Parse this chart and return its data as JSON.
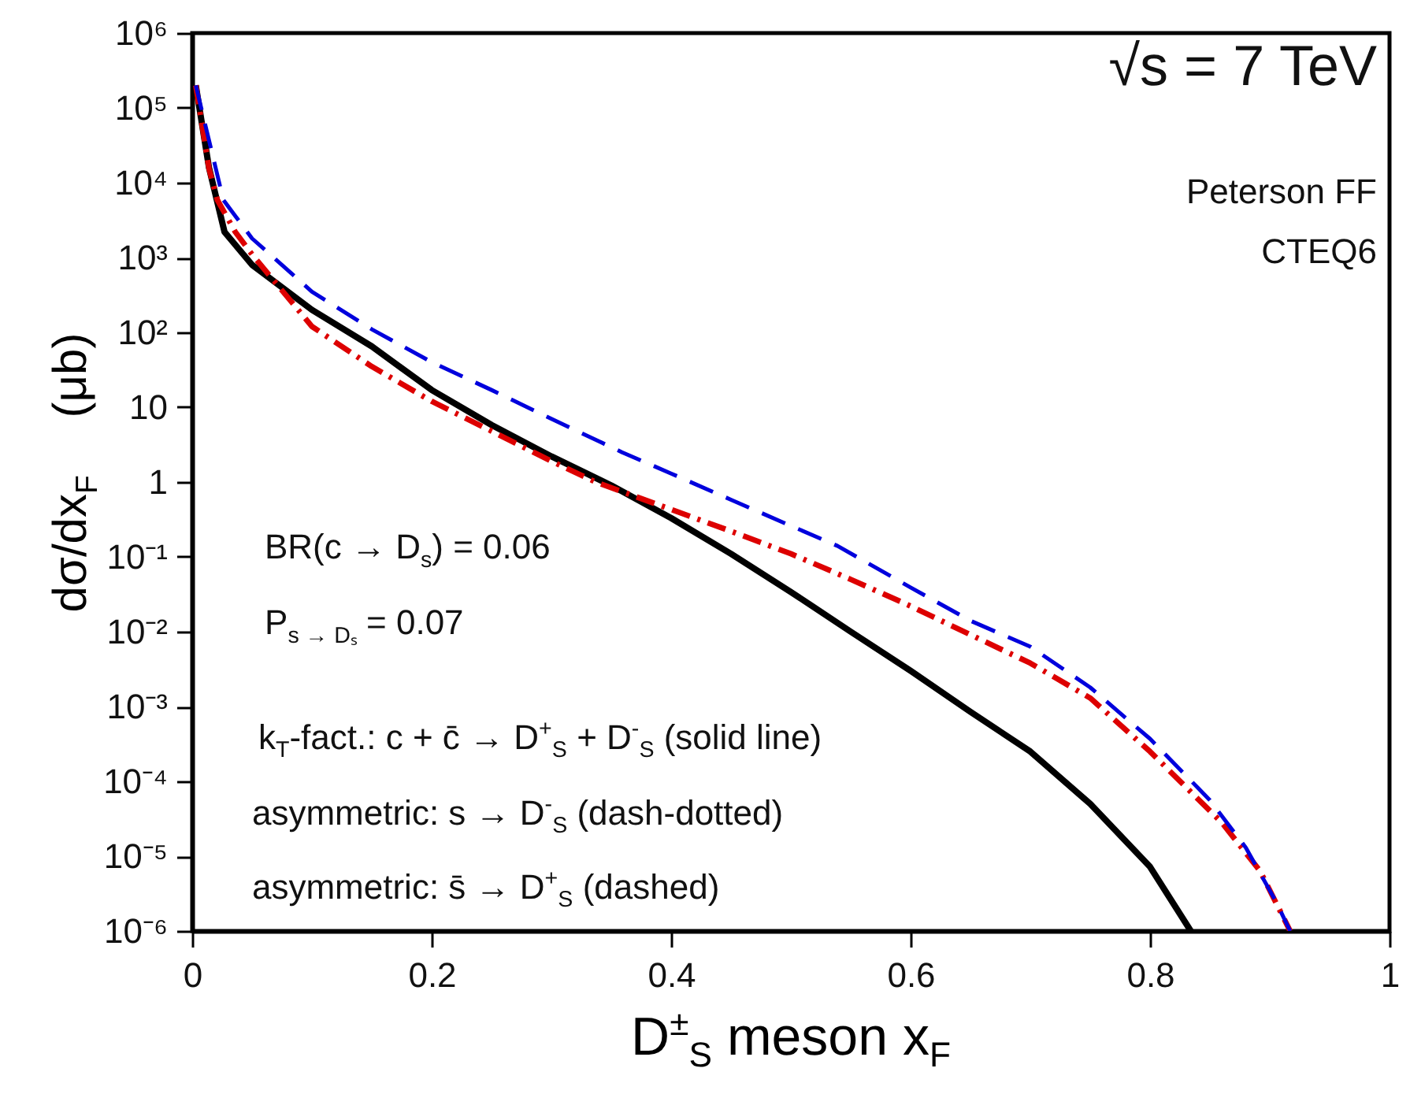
{
  "chart_data": {
    "type": "line",
    "xlabel": "D$^{±}$$_{S}$ meson x$_{F}$",
    "ylabel": "dσ/dx$_{F}$ (μb)",
    "log": "y",
    "xlim": [
      0,
      1
    ],
    "xticks": [
      0,
      0.2,
      0.4,
      0.6,
      0.8,
      1
    ],
    "ylim": [
      1e-06,
      1000000
    ],
    "yticks": [
      {
        "value": 1e-06,
        "label": "10⁻⁶"
      },
      {
        "value": 1e-05,
        "label": "10⁻⁵"
      },
      {
        "value": 0.0001,
        "label": "10⁻⁴"
      },
      {
        "value": 0.001,
        "label": "10⁻³"
      },
      {
        "value": 0.01,
        "label": "10⁻²"
      },
      {
        "value": 0.1,
        "label": "10⁻¹"
      },
      1,
      10,
      {
        "value": 100,
        "label": "10²"
      },
      {
        "value": 1000,
        "label": "10³"
      },
      {
        "value": 10000,
        "label": "10⁴"
      },
      {
        "value": 100000,
        "label": "10⁵"
      },
      {
        "value": 1000000,
        "label": "10⁶"
      }
    ],
    "annotations": [
      "√s = 7 TeV",
      "Peterson FF",
      "CTEQ6",
      "BR(c → D$_{s}$) = 0.06",
      "P$_{s → Dₛ}$ = 0.07",
      "k$_{T}$-fact.: c + c̄ → D$^{+}$$_{S}$ + D$^{-}$$_{S}$ (solid line)",
      "asymmetric: s → D$^{-}$$_{S}$ (dash-dotted)",
      "asymmetric: s̄ → D$^{+}$$_{S}$ (dashed)"
    ],
    "series": [
      {
        "color": "#000000",
        "line_style": "solid",
        "x": [
          0.003,
          0.014,
          0.027,
          0.05,
          0.1,
          0.15,
          0.2,
          0.25,
          0.3,
          0.35,
          0.4,
          0.45,
          0.5,
          0.55,
          0.6,
          0.65,
          0.7,
          0.75,
          0.8,
          0.834
        ],
        "values": [
          200000,
          16000,
          2200,
          800,
          200,
          65,
          17,
          5.8,
          2.2,
          0.9,
          0.33,
          0.11,
          0.034,
          0.01,
          0.003,
          0.00085,
          0.00025,
          5e-05,
          7.2e-06,
          1e-06
        ]
      },
      {
        "color": "#dd0000",
        "line_style": "dashdot",
        "x": [
          0.003,
          0.014,
          0.021,
          0.036,
          0.05,
          0.1,
          0.15,
          0.2,
          0.25,
          0.3,
          0.337,
          0.4,
          0.45,
          0.5,
          0.55,
          0.6,
          0.65,
          0.7,
          0.75,
          0.8,
          0.86,
          0.892,
          0.917
        ],
        "values": [
          200000,
          15500,
          5900,
          2200,
          1100,
          120,
          35,
          12,
          4.8,
          1.9,
          1,
          0.43,
          0.22,
          0.11,
          0.05,
          0.022,
          0.0091,
          0.0038,
          0.0013,
          0.00025,
          2.8e-05,
          6.3e-06,
          1e-06
        ]
      },
      {
        "color": "#0000dd",
        "line_style": "dashed",
        "x": [
          0.003,
          0.026,
          0.036,
          0.05,
          0.1,
          0.15,
          0.2,
          0.25,
          0.3,
          0.359,
          0.4,
          0.45,
          0.5,
          0.539,
          0.6,
          0.65,
          0.7,
          0.75,
          0.8,
          0.85,
          0.88,
          0.905,
          0.917
        ],
        "values": [
          200000,
          5900,
          3600,
          1800,
          350,
          110,
          40,
          17,
          7,
          2.5,
          1.3,
          0.58,
          0.26,
          0.14,
          0.039,
          0.014,
          0.0063,
          0.0018,
          0.00037,
          5.6e-05,
          1.3e-05,
          2.5e-06,
          1e-06
        ]
      }
    ]
  }
}
